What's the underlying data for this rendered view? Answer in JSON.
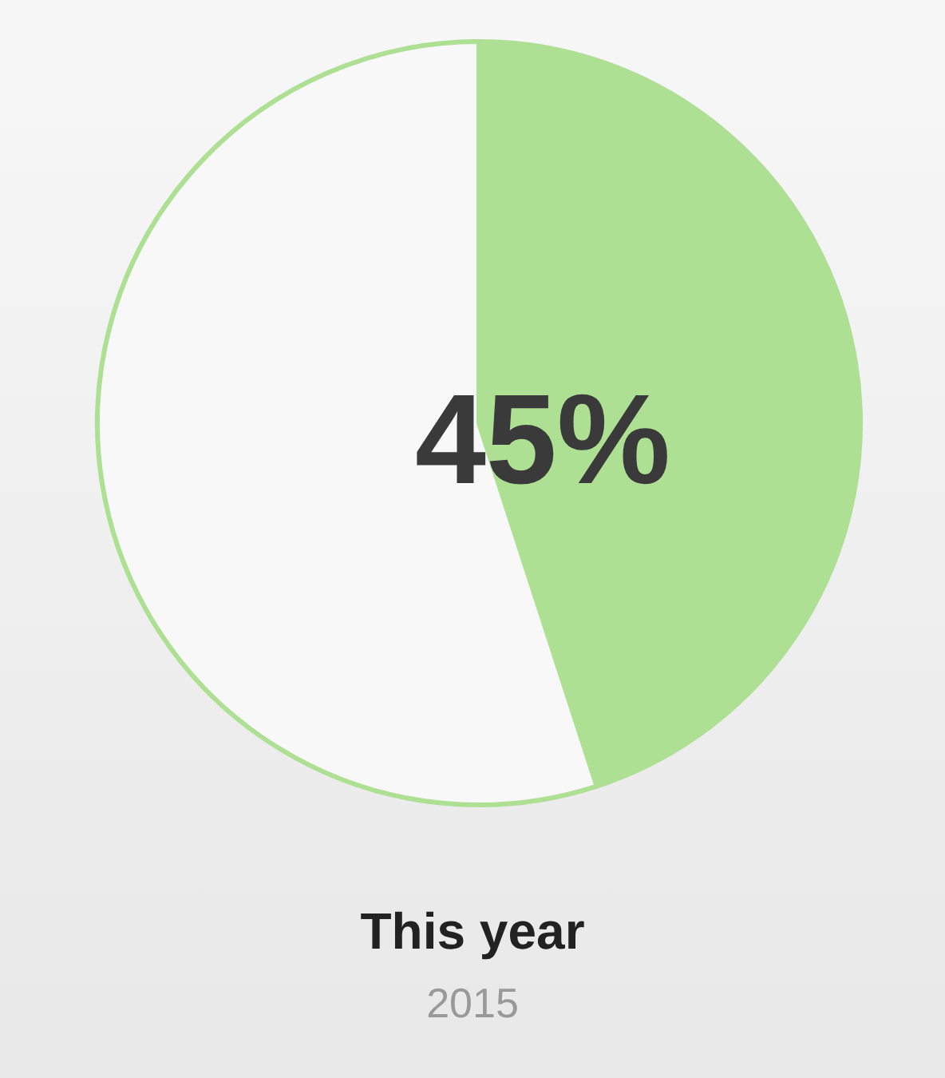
{
  "chart_data": {
    "type": "pie",
    "title": "This year",
    "subtitle": "2015",
    "categories": [
      null,
      null
    ],
    "values": [
      45,
      55
    ],
    "colors": [
      "#aee094",
      "#f8f8f8"
    ],
    "value_labels": [
      "45%",
      null
    ]
  }
}
